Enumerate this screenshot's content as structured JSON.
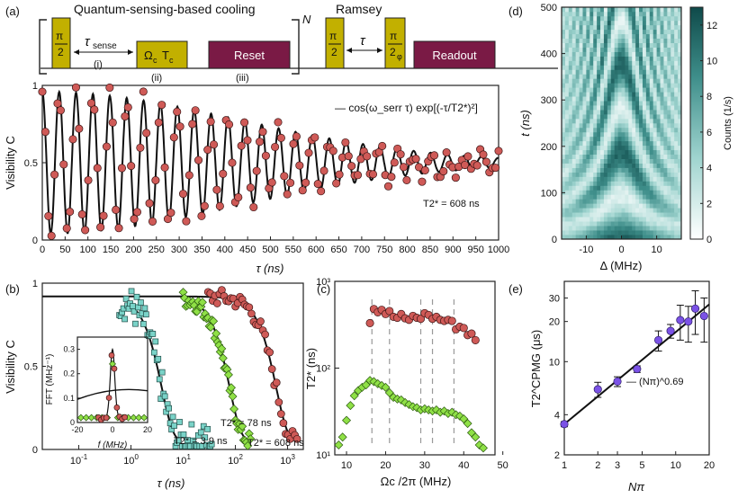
{
  "panel_labels": {
    "a": "(a)",
    "b": "(b)",
    "c": "(c)",
    "d": "(d)",
    "e": "(e)"
  },
  "sequence": {
    "cooling_title": "Quantum-sensing-based cooling",
    "ramsey_title": "Ramsey",
    "repeat_label": "N",
    "pi2_num": "π",
    "pi2_den": "2",
    "pi2phi_den": "2",
    "phi_sub": "φ",
    "tau_sense": "τ",
    "tau_sense_sub": "sense",
    "omega_pulse": "Ω",
    "omega_sub": "c",
    "omega_T": "T",
    "omega_T_sub": "c",
    "reset_label": "Reset",
    "readout_label": "Readout",
    "tau_ramsey": "τ",
    "step_i": "(i)",
    "step_ii": "(ii)",
    "step_iii": "(iii)"
  },
  "chart_data": [
    {
      "id": "a",
      "type": "scatter",
      "xlabel": "τ (ns)",
      "ylabel": "Visibility C",
      "xlim": [
        0,
        1000
      ],
      "ylim": [
        0,
        1
      ],
      "xticks": [
        "0",
        "50",
        "100",
        "150",
        "200",
        "250",
        "300",
        "350",
        "400",
        "450",
        "500",
        "550",
        "600",
        "650",
        "700",
        "750",
        "800",
        "850",
        "900",
        "950",
        "1000"
      ],
      "yticks": [
        "0",
        "0.5",
        "1"
      ],
      "legend": "— cos(ω_serr τ) exp[(-τ/T2*)²]",
      "annotation": "T2* = 608 ns",
      "fit": {
        "omega_period_ns": 37,
        "T2_ns": 608,
        "offset": 0.5,
        "amp": 0.46
      },
      "series": [
        {
          "name": "data",
          "color": "#cf5a57",
          "n": 150
        }
      ]
    },
    {
      "id": "b",
      "type": "scatter",
      "xlabel": "τ (ns)",
      "ylabel": "Visibility C",
      "xscale": "log",
      "xlim": [
        0.02,
        2000
      ],
      "ylim": [
        0,
        1
      ],
      "xticks": [
        "10-1",
        "100",
        "101",
        "102",
        "103"
      ],
      "yticks": [
        "0",
        "0.5",
        "1"
      ],
      "series": [
        {
          "name": "T2* = 3.9 ns",
          "color": "#7ad3c8",
          "T2": 3.9
        },
        {
          "name": "T2* = 78 ns",
          "color": "#8fe046",
          "T2": 78
        },
        {
          "name": "T2* = 608 ns",
          "color": "#cf5a57",
          "T2": 608
        }
      ],
      "inset": {
        "xlabel": "f (MHz)",
        "ylabel": "FFT (MHz⁻¹)",
        "xlim": [
          -20,
          20
        ],
        "ylim": [
          0,
          0.35
        ],
        "xticks": [
          "-20",
          "0",
          "20"
        ],
        "yticks": [
          "0",
          "0.1",
          "0.2",
          "0.3"
        ]
      }
    },
    {
      "id": "c",
      "type": "scatter",
      "xlabel": "Ωc /2π (MHz)",
      "ylabel": "T2* (ns)",
      "yscale": "log",
      "xlim": [
        7,
        48
      ],
      "ylim": [
        10,
        1000
      ],
      "xticks": [
        "10",
        "20",
        "30",
        "40",
        "50"
      ],
      "yticks": [
        "10¹",
        "10²",
        "10³"
      ],
      "dashed_x": [
        16.5,
        21,
        29,
        32,
        37.5
      ],
      "series": [
        {
          "name": "red",
          "color": "#cf5a57",
          "x": [
            16,
            17,
            18,
            19,
            20,
            21,
            22,
            23,
            24,
            25,
            26,
            27,
            28,
            29,
            30,
            31,
            32,
            33,
            34,
            35,
            36,
            37,
            38,
            39,
            40,
            41,
            42,
            43
          ],
          "y": [
            330,
            480,
            440,
            470,
            420,
            455,
            390,
            380,
            420,
            375,
            360,
            400,
            380,
            370,
            430,
            410,
            370,
            390,
            360,
            350,
            360,
            350,
            280,
            300,
            290,
            240,
            250,
            210
          ]
        },
        {
          "name": "green",
          "color": "#8fe046",
          "x": [
            8,
            9,
            10,
            11,
            12,
            13,
            14,
            15,
            16,
            17,
            18,
            19,
            20,
            21,
            22,
            23,
            24,
            25,
            26,
            27,
            28,
            29,
            30,
            31,
            32,
            33,
            34,
            35,
            36,
            37,
            38,
            39,
            40,
            41,
            42,
            43,
            44,
            45
          ],
          "y": [
            13,
            16,
            25,
            37,
            48,
            55,
            60,
            64,
            72,
            70,
            66,
            63,
            60,
            52,
            46,
            44,
            43,
            40,
            38,
            36,
            35,
            33,
            34,
            33,
            32,
            33,
            31,
            32,
            30,
            31,
            29,
            28,
            26,
            23,
            18,
            16,
            13,
            12
          ]
        }
      ]
    },
    {
      "id": "d",
      "type": "heatmap",
      "xlabel": "Δ (MHz)",
      "ylabel": "t (ns)",
      "xlim": [
        -17,
        17
      ],
      "ylim": [
        0,
        500
      ],
      "xticks": [
        "-10",
        "0",
        "10"
      ],
      "yticks": [
        "0",
        "100",
        "200",
        "300",
        "400",
        "500"
      ],
      "colorbar_label": "Counts (1/s)",
      "colorbar_ticks": [
        "0",
        "2",
        "4",
        "6",
        "8",
        "10",
        "12"
      ],
      "colorbar_range": [
        0,
        13
      ],
      "colors": {
        "low": "#ffffff",
        "high": "#0f4a4a"
      }
    },
    {
      "id": "e",
      "type": "scatter",
      "xlabel": "Nπ",
      "ylabel": "T2^CPMG (μs)",
      "xscale": "log",
      "yscale": "log",
      "xlim": [
        1,
        20
      ],
      "ylim": [
        2,
        40
      ],
      "xticks": [
        "1",
        "2",
        "3",
        "5",
        "10",
        "20"
      ],
      "yticks": [
        "2",
        "4",
        "10",
        "20",
        "30"
      ],
      "legend": "— (Nπ)^0.69",
      "fit_exponent": 0.69,
      "fit_prefactor": 3.4,
      "series": [
        {
          "name": "data",
          "color": "#7b52e6",
          "x": [
            1,
            2,
            3,
            4.5,
            7,
            9,
            11,
            13,
            15,
            18
          ],
          "y": [
            3.4,
            6.2,
            7.1,
            8.8,
            14.5,
            17,
            20.5,
            20,
            25,
            22
          ],
          "err": [
            0.15,
            0.8,
            0.6,
            0.5,
            2.5,
            2,
            6,
            6,
            9,
            8
          ]
        }
      ]
    }
  ]
}
